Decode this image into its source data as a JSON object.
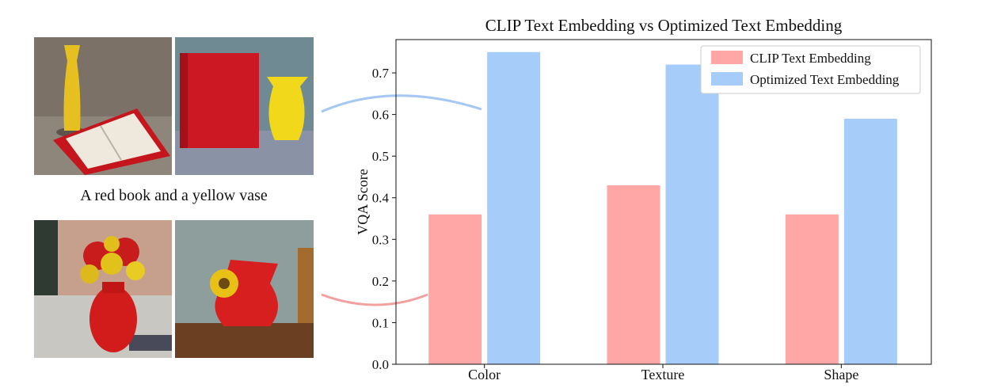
{
  "figure": {
    "caption": "A red book and a yellow vase",
    "images": [
      {
        "position": "top-left"
      },
      {
        "position": "top-right"
      },
      {
        "position": "bottom-left"
      },
      {
        "position": "bottom-right"
      }
    ],
    "connector_colors": {
      "top": "#a4c8f3",
      "bottom": "#f2a0a0"
    }
  },
  "chart_data": {
    "type": "bar",
    "title": "CLIP Text Embedding vs Optimized Text Embedding",
    "xlabel": "",
    "ylabel": "VQA Score",
    "categories": [
      "Color",
      "Texture",
      "Shape"
    ],
    "series": [
      {
        "name": "CLIP Text Embedding",
        "values": [
          0.36,
          0.43,
          0.36
        ],
        "color": "#ffa7a7"
      },
      {
        "name": "Optimized Text Embedding",
        "values": [
          0.75,
          0.72,
          0.59
        ],
        "color": "#a6cdfa"
      }
    ],
    "ylim": [
      0,
      0.78
    ],
    "yticks": [
      "0.0",
      "0.1",
      "0.2",
      "0.3",
      "0.4",
      "0.5",
      "0.6",
      "0.7"
    ],
    "legend_position": "top-right",
    "grid": false
  }
}
